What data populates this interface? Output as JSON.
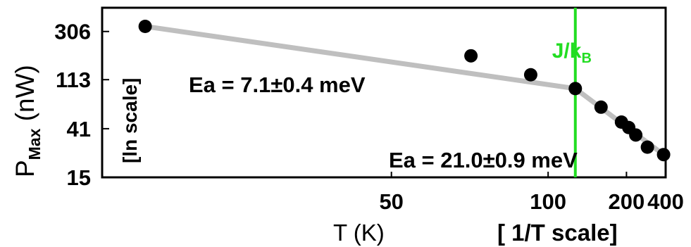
{
  "chart_data": {
    "type": "scatter",
    "title": "",
    "ylabel_main": "P",
    "ylabel_sub": "Max",
    "ylabel_unit": " (nW)",
    "ylabel_scale_note": "[ln scale]",
    "xlabel": "T (K)",
    "xlabel_scale_note": "[ 1/T scale]",
    "x_scale": "reciprocal",
    "y_scale": "log",
    "xlim": [
      26,
      400
    ],
    "ylim": [
      15,
      500
    ],
    "x_ticks": [
      {
        "value": 50,
        "label": "50"
      },
      {
        "value": 100,
        "label": "100"
      },
      {
        "value": 200,
        "label": "200"
      },
      {
        "value": 400,
        "label": "400"
      }
    ],
    "y_ticks": [
      {
        "value": 15,
        "label": "15"
      },
      {
        "value": 41,
        "label": "41"
      },
      {
        "value": 113,
        "label": "113"
      },
      {
        "value": 306,
        "label": "306"
      }
    ],
    "series": [
      {
        "marker_color": "#000000",
        "fit_line_color": "#bfbfbf",
        "points": [
          {
            "x": 28,
            "y": 340
          },
          {
            "x": 67,
            "y": 185
          },
          {
            "x": 90,
            "y": 125
          },
          {
            "x": 121,
            "y": 94
          },
          {
            "x": 151,
            "y": 64
          },
          {
            "x": 188,
            "y": 47
          },
          {
            "x": 206,
            "y": 42
          },
          {
            "x": 227,
            "y": 36
          },
          {
            "x": 273,
            "y": 28
          },
          {
            "x": 380,
            "y": 24
          }
        ]
      }
    ],
    "fit_lines": [
      {
        "from": {
          "x": 28,
          "y": 340
        },
        "to": {
          "x": 121,
          "y": 94
        }
      },
      {
        "from": {
          "x": 121,
          "y": 94
        },
        "to": {
          "x": 380,
          "y": 24
        }
      }
    ],
    "vertical_line": {
      "x": 121,
      "label_main": "J/k",
      "label_sub": "B",
      "color": "#22dd22"
    },
    "annotations": [
      {
        "text": "Ea = 7.1±0.4 meV",
        "x": 30,
        "y": 95
      },
      {
        "text": "Ea = 21.0±0.9 meV",
        "x": 75,
        "y": 18.5
      }
    ],
    "grid": false,
    "legend": "none"
  }
}
